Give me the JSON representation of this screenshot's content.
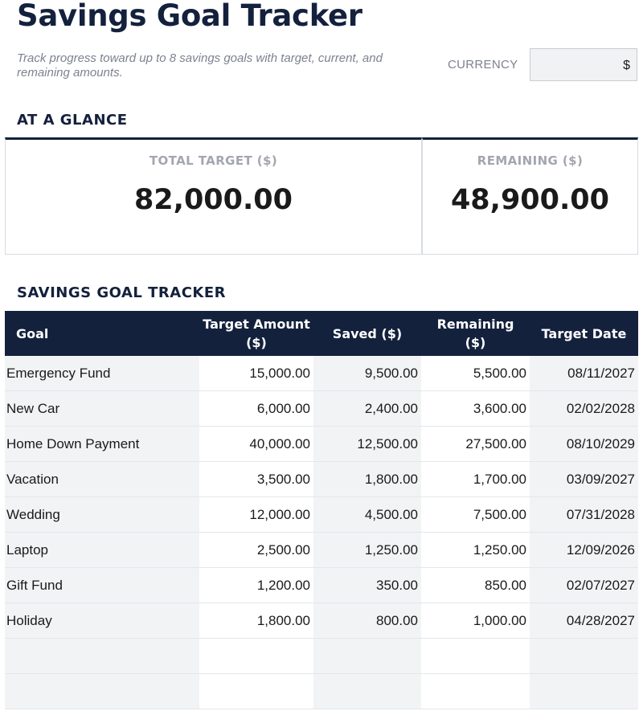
{
  "page": {
    "title": "Savings Goal Tracker",
    "subtitle": "Track progress toward up to 8 savings goals with target, current, and remaining amounts.",
    "currency_label": "CURRENCY",
    "currency_value": "$"
  },
  "glance": {
    "heading": "AT A GLANCE",
    "total_target_label": "TOTAL TARGET ($)",
    "total_target_value": "82,000.00",
    "remaining_label": "REMAINING ($)",
    "remaining_value": "48,900.00"
  },
  "tracker": {
    "heading": "SAVINGS GOAL TRACKER",
    "columns": [
      "Goal",
      "Target Amount ($)",
      "Saved ($)",
      "Remaining ($)",
      "Target Date"
    ],
    "rows": [
      [
        "Emergency Fund",
        "15,000.00",
        "9,500.00",
        "5,500.00",
        "08/11/2027"
      ],
      [
        "New Car",
        "6,000.00",
        "2,400.00",
        "3,600.00",
        "02/02/2028"
      ],
      [
        "Home Down Payment",
        "40,000.00",
        "12,500.00",
        "27,500.00",
        "08/10/2029"
      ],
      [
        "Vacation",
        "3,500.00",
        "1,800.00",
        "1,700.00",
        "03/09/2027"
      ],
      [
        "Wedding",
        "12,000.00",
        "4,500.00",
        "7,500.00",
        "07/31/2028"
      ],
      [
        "Laptop",
        "2,500.00",
        "1,250.00",
        "1,250.00",
        "12/09/2026"
      ],
      [
        "Gift Fund",
        "1,200.00",
        "350.00",
        "850.00",
        "02/07/2027"
      ],
      [
        "Holiday",
        "1,800.00",
        "800.00",
        "1,000.00",
        "04/28/2027"
      ],
      [
        "",
        "",
        "",
        "",
        ""
      ],
      [
        "",
        "",
        "",
        "",
        ""
      ]
    ]
  }
}
